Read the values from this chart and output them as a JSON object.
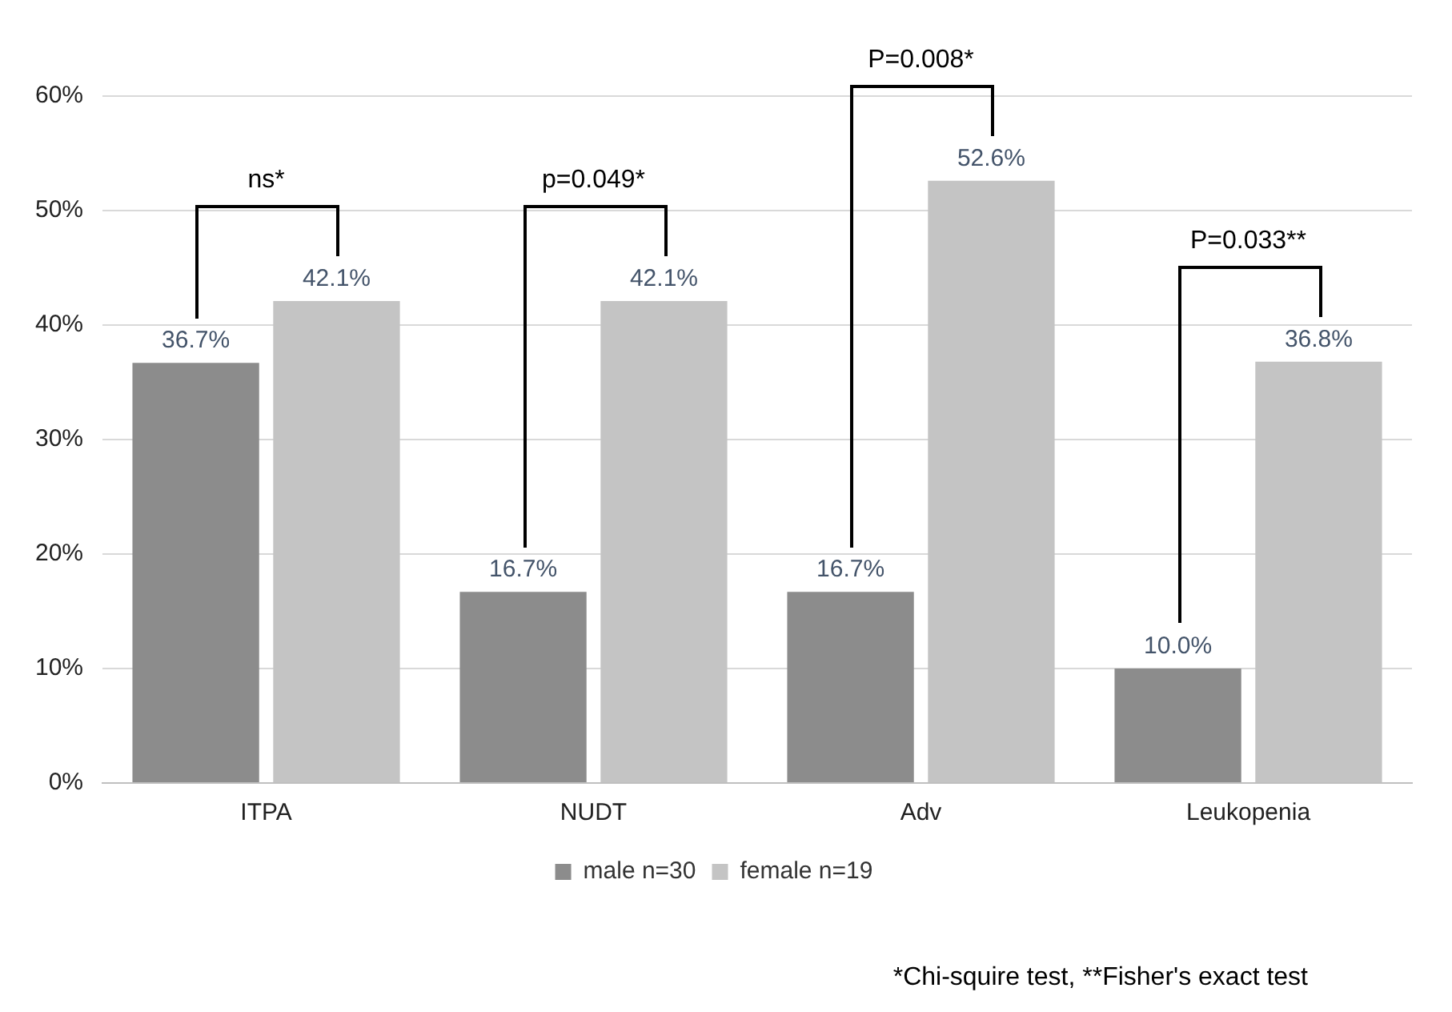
{
  "chart_data": {
    "type": "bar",
    "categories": [
      "ITPA",
      "NUDT",
      "Adv",
      "Leukopenia"
    ],
    "series": [
      {
        "name": "male n=30",
        "color": "#8c8c8c",
        "values": [
          36.7,
          16.7,
          16.7,
          10.0
        ],
        "value_labels": [
          "36.7%",
          "16.7%",
          "16.7%",
          "10.0%"
        ]
      },
      {
        "name": "female n=19",
        "color": "#c4c4c4",
        "values": [
          42.1,
          42.1,
          52.6,
          36.8
        ],
        "value_labels": [
          "42.1%",
          "42.1%",
          "52.6%",
          "36.8%"
        ]
      }
    ],
    "ylim": [
      0,
      60
    ],
    "yticks": [
      {
        "value": 0,
        "label": "0%"
      },
      {
        "value": 10,
        "label": "10%"
      },
      {
        "value": 20,
        "label": "20%"
      },
      {
        "value": 30,
        "label": "30%"
      },
      {
        "value": 40,
        "label": "40%"
      },
      {
        "value": 50,
        "label": "50%"
      },
      {
        "value": 60,
        "label": "60%"
      }
    ],
    "grid": "y",
    "legend": "bottom",
    "annotations": [
      "ns*",
      "p=0.049*",
      "P=0.008*",
      "P=0.033**",
      "*Chi-squire test,  **Fisher's exact test"
    ]
  }
}
